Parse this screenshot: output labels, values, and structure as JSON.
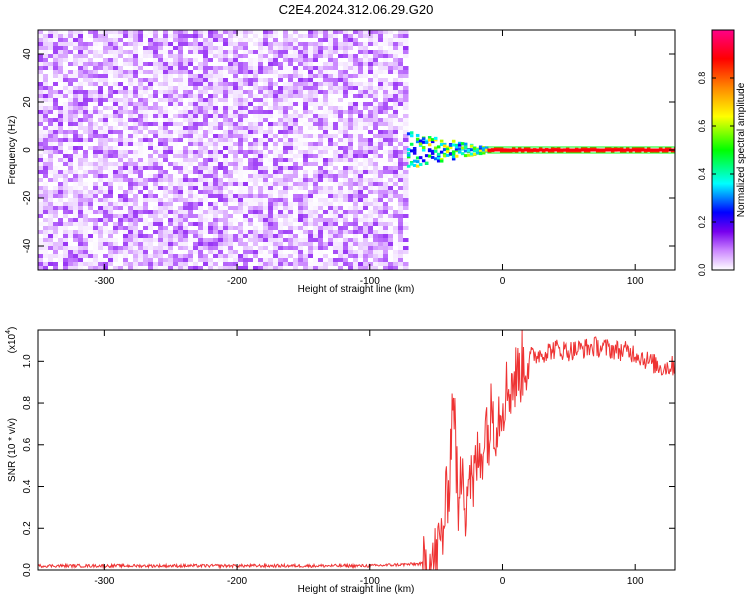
{
  "title": "C2E4.2024.312.06.29.G20",
  "chart_data": [
    {
      "type": "heatmap",
      "title": "C2E4.2024.312.06.29.G20",
      "xlabel": "Height of straight line (km)",
      "ylabel": "Frequency (Hz)",
      "xlim": [
        -350,
        130
      ],
      "ylim": [
        -50,
        50
      ],
      "xticks": [
        -300,
        -200,
        -100,
        0,
        100
      ],
      "xtick_labels": [
        "-300",
        "-200",
        "-100",
        "0",
        "100"
      ],
      "yticks": [
        -40,
        -20,
        0,
        20,
        40
      ],
      "ytick_labels": [
        "-40",
        "-20",
        "0",
        "20",
        "40"
      ],
      "colorbar": {
        "label": "Normalized spectral amplitude",
        "range": [
          0,
          1
        ],
        "ticks": [
          0.0,
          0.2,
          0.4,
          0.6,
          0.8
        ],
        "tick_labels": [
          "0.0",
          "0.2",
          "0.4",
          "0.6",
          "0.8"
        ],
        "colormap": [
          "#ffffff",
          "#cc88ff",
          "#7700ee",
          "#0000ff",
          "#00ffff",
          "#00ff00",
          "#ffff00",
          "#ff8800",
          "#ff0000",
          "#ff0088"
        ]
      },
      "regions": [
        {
          "description": "noise",
          "x_range": [
            -350,
            -72
          ],
          "y_range": [
            -50,
            50
          ],
          "amplitude_range": [
            0.0,
            0.15
          ]
        },
        {
          "description": "signal",
          "x_range": [
            -72,
            130
          ],
          "frequency": 0,
          "amplitude_range": [
            0.3,
            1.0
          ]
        }
      ],
      "grid": false
    },
    {
      "type": "line",
      "xlabel": "Height of straight line (km)",
      "ylabel": "SNR (10 * v/v)",
      "y_scale_label": "(x10",
      "y_scale_exponent": "4",
      "xlim": [
        -350,
        130
      ],
      "ylim": [
        0,
        1.15
      ],
      "xticks": [
        -300,
        -200,
        -100,
        0,
        100
      ],
      "xtick_labels": [
        "-300",
        "-200",
        "-100",
        "0",
        "100"
      ],
      "yticks": [
        0.0,
        0.2,
        0.4,
        0.6,
        0.8,
        1.0
      ],
      "ytick_labels": [
        "0.0",
        "0.2",
        "0.4",
        "0.6",
        "0.8",
        "1.0"
      ],
      "color": "#ee3333",
      "grid": false,
      "x": [
        -350,
        -300,
        -250,
        -200,
        -150,
        -100,
        -60,
        -50,
        -45,
        -40,
        -37,
        -35,
        -33,
        -30,
        -28,
        -25,
        -22,
        -20,
        -18,
        -15,
        -12,
        -10,
        -8,
        -5,
        -2,
        0,
        5,
        10,
        15,
        20,
        30,
        40,
        50,
        60,
        70,
        80,
        90,
        100,
        110,
        120,
        130
      ],
      "y": [
        0.02,
        0.02,
        0.02,
        0.02,
        0.02,
        0.02,
        0.03,
        0.06,
        0.18,
        0.45,
        0.9,
        0.55,
        0.22,
        0.6,
        0.3,
        0.5,
        0.35,
        0.55,
        0.5,
        0.6,
        0.72,
        0.62,
        0.8,
        0.7,
        0.78,
        0.82,
        0.88,
        0.92,
        0.98,
        1.02,
        1.04,
        1.06,
        1.05,
        1.06,
        1.07,
        1.06,
        1.05,
        1.04,
        1.0,
        0.97,
        0.98
      ]
    }
  ]
}
